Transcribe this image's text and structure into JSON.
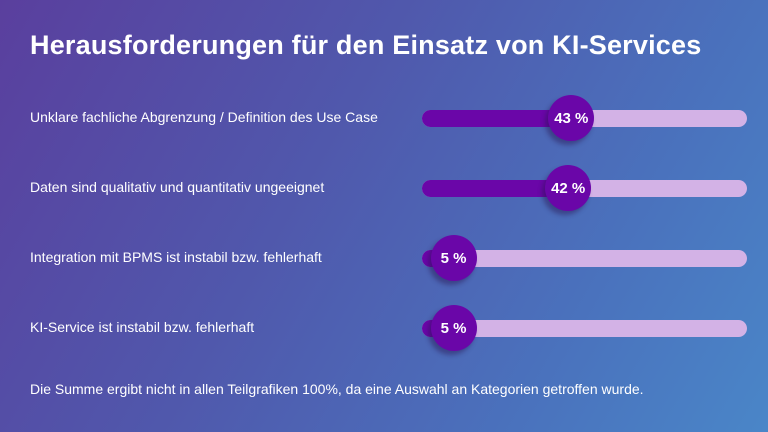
{
  "chart_data": {
    "type": "bar",
    "title": "Herausforderungen für den Einsatz von KI-Services",
    "categories": [
      "Unklare fachliche Abgrenzung / Definition des Use Case",
      "Daten sind qualitativ und quantitativ ungeeignet",
      "Integration mit BPMS ist instabil bzw. fehlerhaft",
      "KI-Service ist instabil bzw. fehlerhaft"
    ],
    "values": [
      43,
      42,
      5,
      5
    ],
    "value_labels": [
      "43 %",
      "42 %",
      "5 %",
      "5 %"
    ],
    "xlim": [
      0,
      100
    ],
    "orientation": "horizontal",
    "grid": false,
    "colors": {
      "fill": "#6a06a8",
      "track": "#d3b2e6"
    },
    "footnote": "Die Summe ergibt nicht in allen Teilgrafiken 100%, da eine Auswahl an Kategorien getroffen wurde."
  }
}
